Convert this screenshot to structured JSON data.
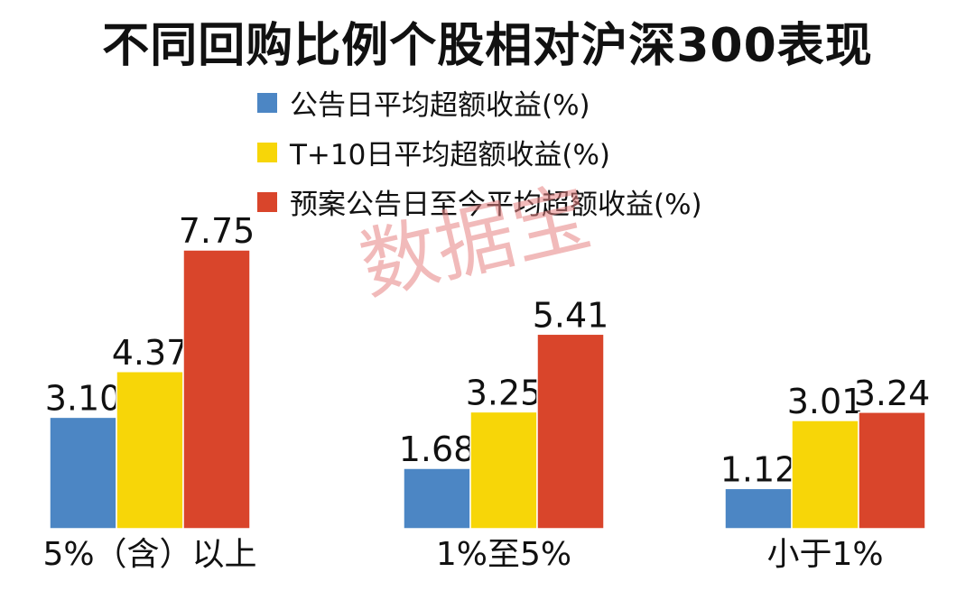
{
  "chart_data": {
    "type": "bar",
    "title": "不同回购比例个股相对沪深300表现",
    "categories": [
      "5%（含）以上",
      "1%至5%",
      "小于1%"
    ],
    "series": [
      {
        "name": "公告日平均超额收益(%)",
        "color": "#4c86c4",
        "values": [
          3.1,
          1.68,
          1.12
        ]
      },
      {
        "name": "T+10日平均超额收益(%)",
        "color": "#f7d608",
        "values": [
          4.37,
          3.25,
          3.01
        ]
      },
      {
        "name": "预案公告日至今平均超额收益(%)",
        "color": "#d9452b",
        "values": [
          7.75,
          5.41,
          3.24
        ]
      }
    ],
    "value_labels": [
      [
        "3.10",
        "1.68",
        "1.12"
      ],
      [
        "4.37",
        "3.25",
        "3.01"
      ],
      [
        "7.75",
        "5.41",
        "3.24"
      ]
    ],
    "ylim": [
      0,
      7.75
    ],
    "legend_position": "top",
    "grid": false
  },
  "watermark": "数据宝"
}
